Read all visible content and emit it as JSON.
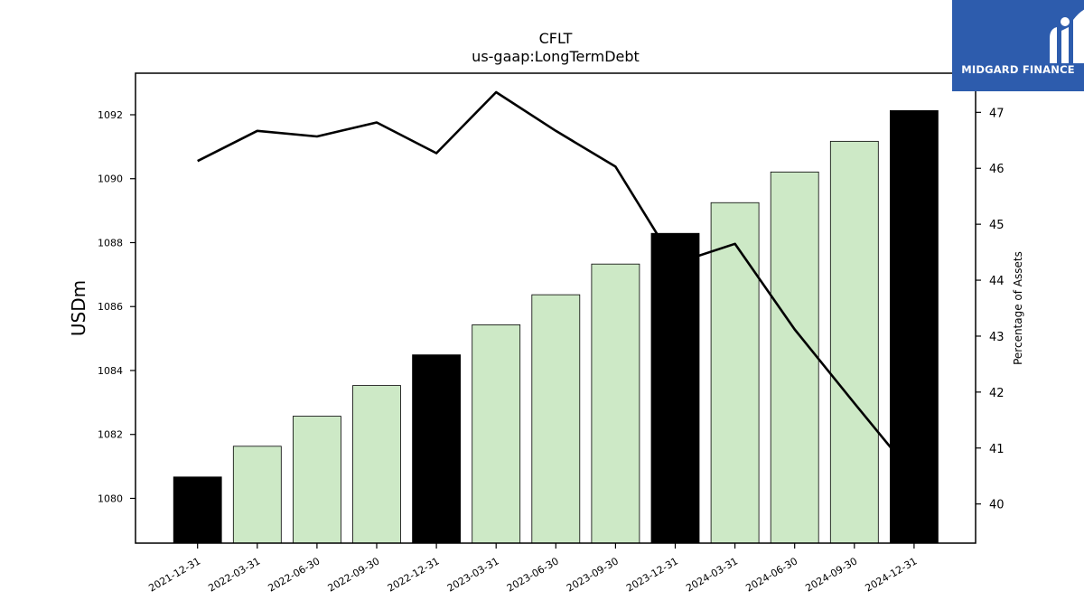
{
  "logo": {
    "text": "MIDGARD FINANCE",
    "background": "#2d5cad"
  },
  "chart_data": {
    "type": "bar",
    "title": "CFLT",
    "subtitle": "us-gaap:LongTermDebt",
    "ylabel": "USDm",
    "y2label": "Percentage of Assets",
    "categories": [
      "2021-12-31",
      "2022-03-31",
      "2022-06-30",
      "2022-09-30",
      "2022-12-31",
      "2023-03-31",
      "2023-06-30",
      "2023-09-30",
      "2023-12-31",
      "2024-03-31",
      "2024-06-30",
      "2024-09-30",
      "2024-12-31"
    ],
    "bar_values": [
      1080.67,
      1081.63,
      1082.57,
      1083.53,
      1084.49,
      1085.43,
      1086.37,
      1087.33,
      1088.29,
      1089.25,
      1090.21,
      1091.17,
      1092.13
    ],
    "bar_colors": [
      "#000000",
      "#cde9c6",
      "#cde9c6",
      "#cde9c6",
      "#000000",
      "#cde9c6",
      "#cde9c6",
      "#cde9c6",
      "#000000",
      "#cde9c6",
      "#cde9c6",
      "#cde9c6",
      "#000000"
    ],
    "line_values": [
      46.13,
      46.67,
      46.57,
      46.82,
      46.27,
      47.36,
      46.67,
      46.03,
      44.3,
      44.65,
      43.12,
      41.8,
      40.5
    ],
    "line_color": "#000000",
    "ylim": [
      1078.6,
      1093.3
    ],
    "y2lim": [
      39.3,
      47.7
    ],
    "yticks": [
      1080,
      1082,
      1084,
      1086,
      1088,
      1090,
      1092
    ],
    "y2ticks": [
      40,
      41,
      42,
      43,
      44,
      45,
      46,
      47
    ],
    "grid": false,
    "legend": "none"
  }
}
